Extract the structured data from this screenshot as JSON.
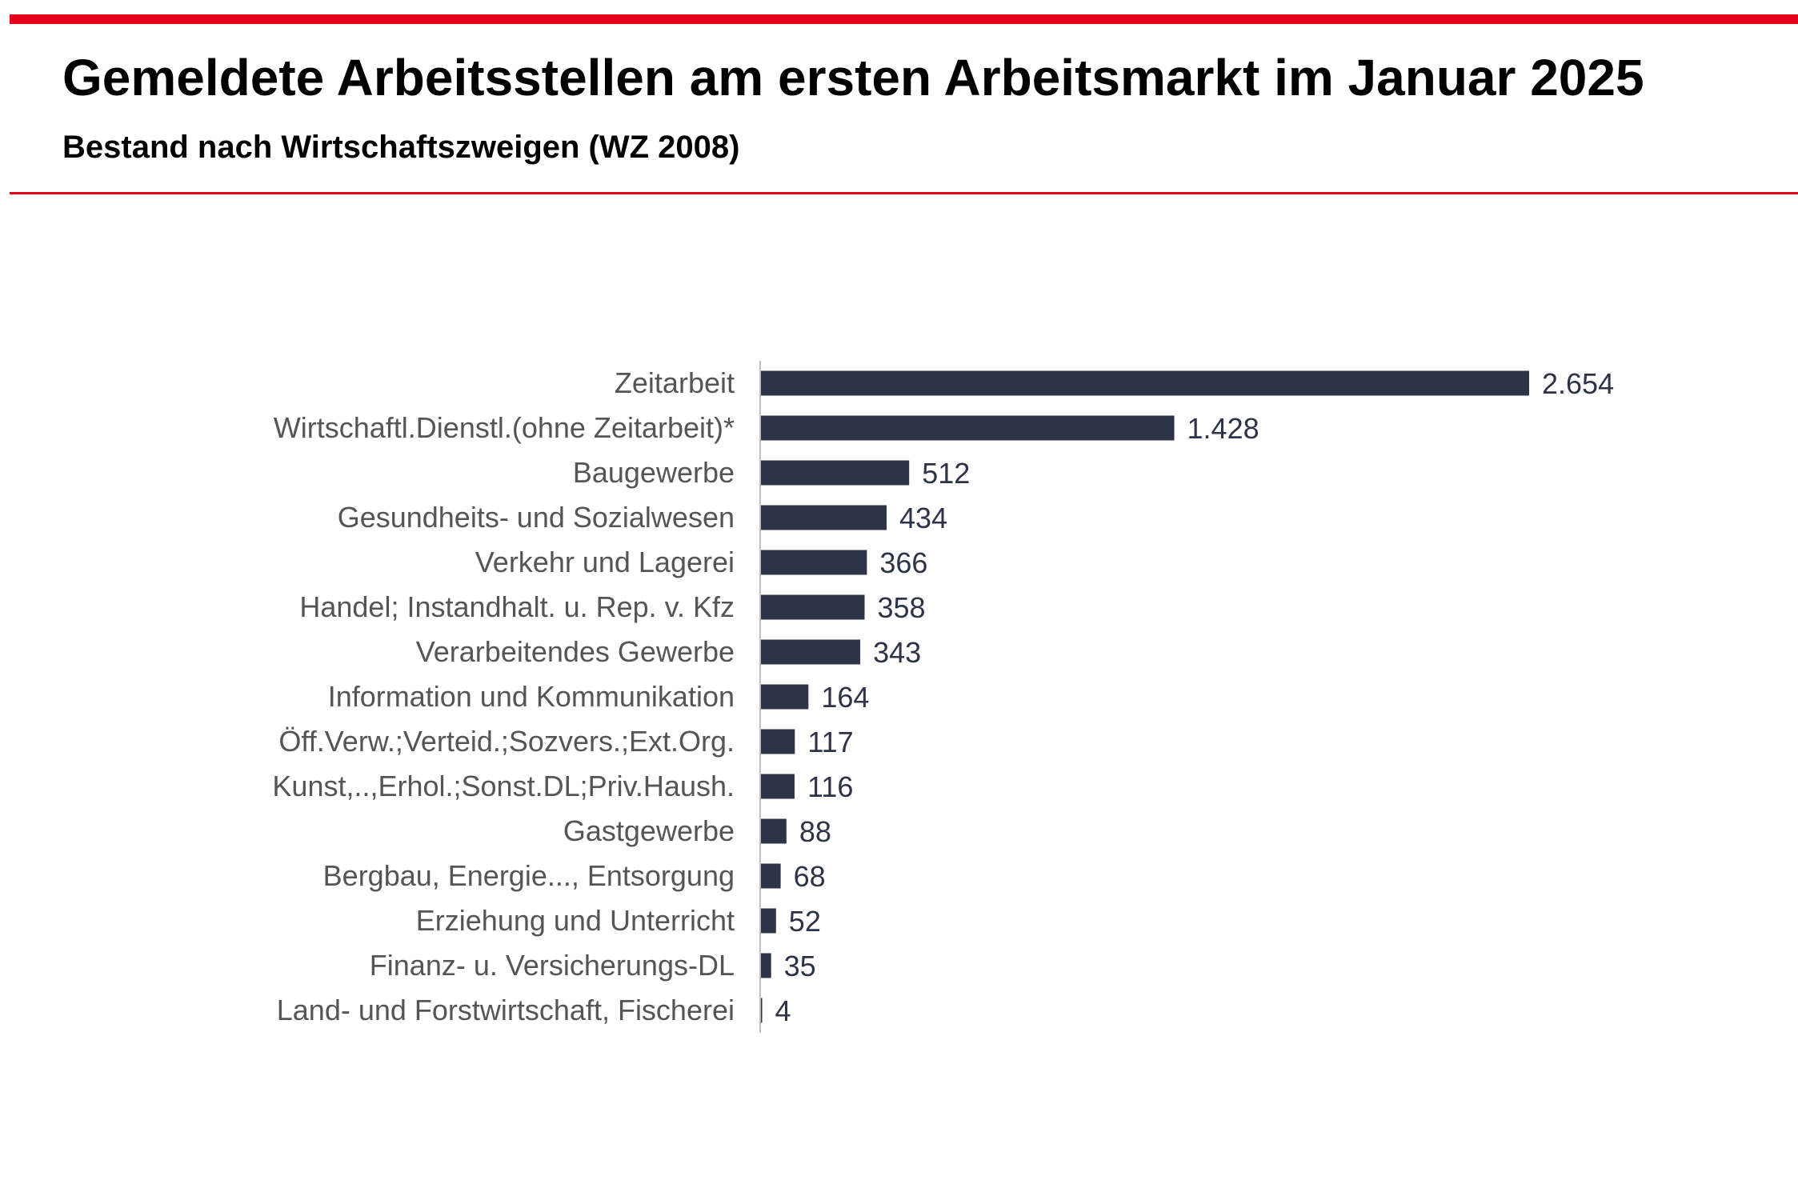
{
  "header": {
    "title": "Gemeldete Arbeitsstellen am ersten Arbeitsmarkt im Januar 2025",
    "subtitle": "Bestand nach Wirtschaftszweigen (WZ 2008)"
  },
  "colors": {
    "accent": "#e2001a",
    "bar": "#2d3447",
    "axis": "#bfbfbf",
    "label": "#555555"
  },
  "chart_data": {
    "type": "bar",
    "orientation": "horizontal",
    "title": "Gemeldete Arbeitsstellen am ersten Arbeitsmarkt im Januar 2025",
    "subtitle": "Bestand nach Wirtschaftszweigen (WZ 2008)",
    "xlabel": "",
    "ylabel": "",
    "xlim": [
      0,
      2654
    ],
    "grid": false,
    "categories": [
      "Zeitarbeit",
      "Wirtschaftl.Dienstl.(ohne Zeitarbeit)*",
      "Baugewerbe",
      "Gesundheits- und Sozialwesen",
      "Verkehr und Lagerei",
      "Handel; Instandhalt. u. Rep. v. Kfz",
      "Verarbeitendes Gewerbe",
      "Information und Kommunikation",
      "Öff.Verw.;Verteid.;Sozvers.;Ext.Org.",
      "Kunst,..,Erhol.;Sonst.DL;Priv.Haush.",
      "Gastgewerbe",
      "Bergbau, Energie..., Entsorgung",
      "Erziehung und Unterricht",
      "Finanz- u. Versicherungs-DL",
      "Land- und Forstwirtschaft, Fischerei"
    ],
    "values": [
      2654,
      1428,
      512,
      434,
      366,
      358,
      343,
      164,
      117,
      116,
      88,
      68,
      52,
      35,
      4
    ],
    "value_labels": [
      "2.654",
      "1.428",
      "512",
      "434",
      "366",
      "358",
      "343",
      "164",
      "117",
      "116",
      "88",
      "68",
      "52",
      "35",
      "4"
    ]
  }
}
